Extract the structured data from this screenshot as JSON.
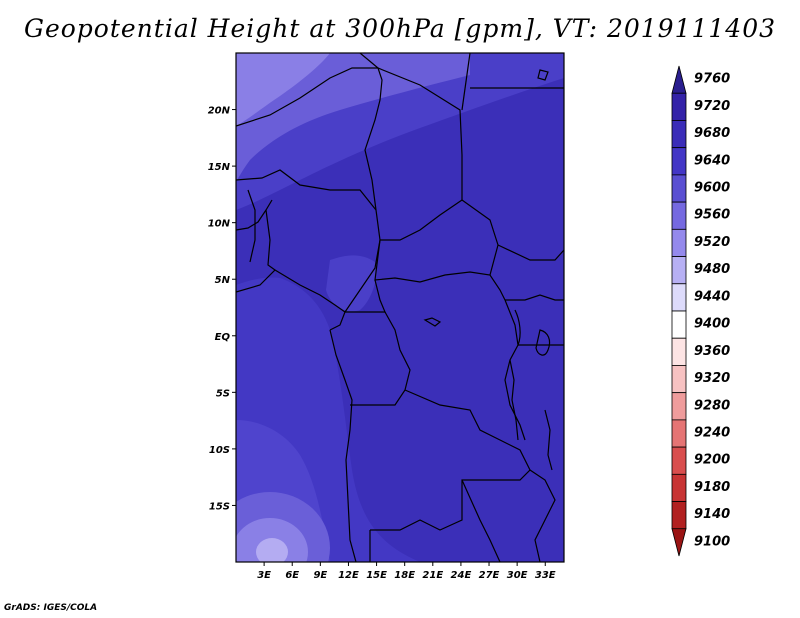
{
  "title": "Geopotential Height at 300hPa [gpm], VT: 2019111403",
  "footer": "GrADS: IGES/COLA",
  "map": {
    "lon_range": [
      0,
      35
    ],
    "lat_range": [
      -20,
      25
    ],
    "lon_ticks": [
      "3E",
      "6E",
      "9E",
      "12E",
      "15E",
      "18E",
      "21E",
      "24E",
      "27E",
      "30E",
      "33E"
    ],
    "lat_ticks": [
      "20N",
      "15N",
      "10N",
      "5N",
      "EQ",
      "5S",
      "10S",
      "15S"
    ]
  },
  "colorbar": {
    "levels": [
      "9760",
      "9720",
      "9680",
      "9640",
      "9600",
      "9560",
      "9520",
      "9480",
      "9440",
      "9400",
      "9360",
      "9320",
      "9280",
      "9240",
      "9200",
      "9180",
      "9140",
      "9100"
    ],
    "colors": [
      "#2a1e8f",
      "#3322a8",
      "#3a2cb8",
      "#4336c6",
      "#5a4fd2",
      "#7569e0",
      "#9489ec",
      "#b7b0f4",
      "#dddbfb",
      "#ffffff",
      "#fde4e4",
      "#f7c2c2",
      "#ef9c9c",
      "#e57474",
      "#d94e4e",
      "#c83434",
      "#b12020",
      "#9a1414"
    ]
  },
  "colors": {
    "region_dark": "#3b2fb8",
    "region_mid": "#4a3fc8",
    "region_light": "#8a7fe6",
    "region_lighter": "#a096ee",
    "border": "#000000"
  }
}
